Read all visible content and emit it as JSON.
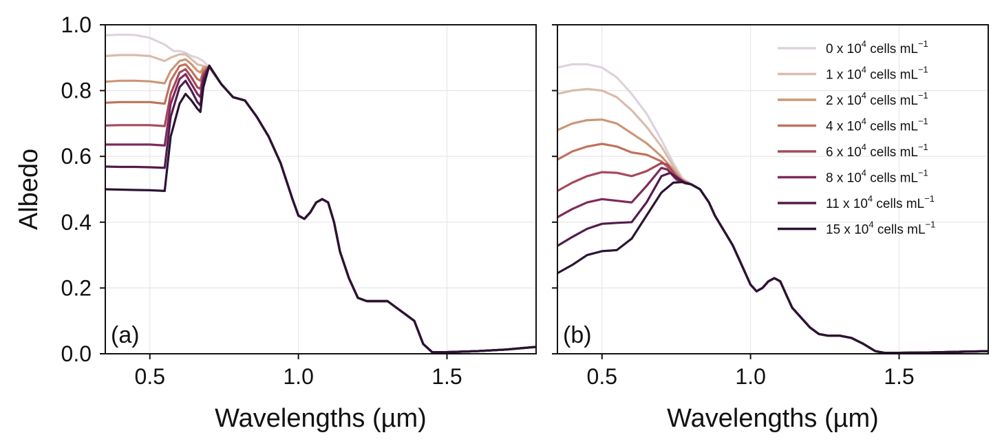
{
  "chart_data": [
    {
      "panel": "a",
      "type": "line",
      "panel_label": "(a)",
      "xlabel": "Wavelengths (µm)",
      "ylabel": "Albedo",
      "xlim": [
        0.35,
        1.8
      ],
      "ylim": [
        0.0,
        1.0
      ],
      "xticks": [
        0.5,
        1.0,
        1.5
      ],
      "xtick_labels": [
        "0.5",
        "1.0",
        "1.5"
      ],
      "yticks": [
        0.0,
        0.2,
        0.4,
        0.6,
        0.8,
        1.0
      ],
      "ytick_labels": [
        "0.0",
        "0.2",
        "0.4",
        "0.6",
        "0.8",
        "1.0"
      ],
      "grid": true,
      "shared_tail": {
        "x": [
          0.7,
          0.74,
          0.78,
          0.82,
          0.86,
          0.9,
          0.94,
          0.98,
          1.0,
          1.02,
          1.04,
          1.06,
          1.08,
          1.1,
          1.12,
          1.14,
          1.17,
          1.2,
          1.23,
          1.26,
          1.3,
          1.33,
          1.36,
          1.39,
          1.42,
          1.45,
          1.5,
          1.6,
          1.7,
          1.8
        ],
        "y": [
          0.87,
          0.82,
          0.78,
          0.77,
          0.72,
          0.66,
          0.58,
          0.47,
          0.42,
          0.41,
          0.43,
          0.46,
          0.47,
          0.46,
          0.4,
          0.31,
          0.23,
          0.17,
          0.16,
          0.16,
          0.16,
          0.14,
          0.12,
          0.1,
          0.03,
          0.005,
          0.005,
          0.008,
          0.013,
          0.021
        ]
      },
      "series": [
        {
          "name": "0 x 10^4 cells mL^-1",
          "color": "#ddd3dd",
          "x": [
            0.35,
            0.4,
            0.45,
            0.5,
            0.55,
            0.58,
            0.6,
            0.62,
            0.64,
            0.66,
            0.68,
            0.7
          ],
          "y": [
            0.968,
            0.97,
            0.969,
            0.96,
            0.94,
            0.92,
            0.92,
            0.915,
            0.905,
            0.9,
            0.89,
            0.87
          ]
        },
        {
          "name": "1 x 10^4 cells mL^-1",
          "color": "#d8bcab",
          "x": [
            0.35,
            0.4,
            0.45,
            0.5,
            0.55,
            0.57,
            0.6,
            0.62,
            0.64,
            0.66,
            0.68,
            0.7
          ],
          "y": [
            0.905,
            0.908,
            0.908,
            0.905,
            0.89,
            0.9,
            0.91,
            0.91,
            0.895,
            0.88,
            0.875,
            0.87
          ]
        },
        {
          "name": "2 x 10^4 cells mL^-1",
          "color": "#cc9676",
          "x": [
            0.35,
            0.4,
            0.45,
            0.5,
            0.55,
            0.57,
            0.6,
            0.62,
            0.64,
            0.66,
            0.67,
            0.68,
            0.7
          ],
          "y": [
            0.827,
            0.83,
            0.83,
            0.828,
            0.822,
            0.86,
            0.89,
            0.895,
            0.88,
            0.86,
            0.855,
            0.87,
            0.872
          ]
        },
        {
          "name": "4 x 10^4 cells mL^-1",
          "color": "#c0725c",
          "x": [
            0.35,
            0.4,
            0.45,
            0.5,
            0.55,
            0.57,
            0.6,
            0.62,
            0.64,
            0.66,
            0.67,
            0.68,
            0.7
          ],
          "y": [
            0.763,
            0.765,
            0.765,
            0.765,
            0.76,
            0.83,
            0.875,
            0.88,
            0.86,
            0.835,
            0.83,
            0.86,
            0.873
          ]
        },
        {
          "name": "6 x 10^4 cells mL^-1",
          "color": "#a8485a",
          "x": [
            0.35,
            0.4,
            0.45,
            0.5,
            0.55,
            0.57,
            0.6,
            0.62,
            0.64,
            0.66,
            0.67,
            0.68,
            0.7
          ],
          "y": [
            0.694,
            0.695,
            0.695,
            0.695,
            0.692,
            0.79,
            0.855,
            0.865,
            0.84,
            0.81,
            0.805,
            0.85,
            0.873
          ]
        },
        {
          "name": "8 x 10^4 cells mL^-1",
          "color": "#7e2a5c",
          "x": [
            0.35,
            0.4,
            0.45,
            0.5,
            0.55,
            0.57,
            0.6,
            0.62,
            0.64,
            0.66,
            0.67,
            0.68,
            0.7
          ],
          "y": [
            0.636,
            0.636,
            0.636,
            0.636,
            0.633,
            0.76,
            0.835,
            0.85,
            0.82,
            0.79,
            0.78,
            0.84,
            0.874
          ]
        },
        {
          "name": "11 x 10^4 cells mL^-1",
          "color": "#531b4e",
          "x": [
            0.35,
            0.4,
            0.45,
            0.5,
            0.55,
            0.57,
            0.6,
            0.62,
            0.64,
            0.66,
            0.67,
            0.68,
            0.7
          ],
          "y": [
            0.569,
            0.568,
            0.568,
            0.567,
            0.565,
            0.72,
            0.81,
            0.83,
            0.8,
            0.765,
            0.755,
            0.83,
            0.875
          ]
        },
        {
          "name": "15 x 10^4 cells mL^-1",
          "color": "#2a1434",
          "x": [
            0.35,
            0.4,
            0.45,
            0.5,
            0.55,
            0.57,
            0.6,
            0.62,
            0.64,
            0.66,
            0.67,
            0.68,
            0.7
          ],
          "y": [
            0.5,
            0.499,
            0.498,
            0.497,
            0.495,
            0.66,
            0.76,
            0.79,
            0.77,
            0.745,
            0.735,
            0.81,
            0.876
          ]
        }
      ]
    },
    {
      "panel": "b",
      "type": "line",
      "panel_label": "(b)",
      "xlabel": "Wavelengths (µm)",
      "ylabel": "",
      "xlim": [
        0.35,
        1.8
      ],
      "ylim": [
        0.0,
        1.0
      ],
      "xticks": [
        0.5,
        1.0,
        1.5
      ],
      "xtick_labels": [
        "0.5",
        "1.0",
        "1.5"
      ],
      "yticks": [
        0.0,
        0.2,
        0.4,
        0.6,
        0.8,
        1.0
      ],
      "grid": true,
      "legend": "top-right",
      "shared_tail": {
        "x": [
          0.8,
          0.83,
          0.86,
          0.88,
          0.9,
          0.92,
          0.94,
          0.96,
          0.98,
          1.0,
          1.02,
          1.04,
          1.06,
          1.08,
          1.1,
          1.12,
          1.14,
          1.17,
          1.2,
          1.23,
          1.26,
          1.3,
          1.34,
          1.38,
          1.42,
          1.45,
          1.5,
          1.6,
          1.7,
          1.8
        ],
        "y": [
          0.515,
          0.5,
          0.46,
          0.42,
          0.39,
          0.36,
          0.33,
          0.29,
          0.25,
          0.21,
          0.19,
          0.2,
          0.22,
          0.23,
          0.22,
          0.18,
          0.14,
          0.11,
          0.08,
          0.06,
          0.055,
          0.055,
          0.048,
          0.03,
          0.008,
          0.003,
          0.003,
          0.004,
          0.006,
          0.008
        ]
      },
      "series": [
        {
          "name": "0 x 10^4 cells mL^-1",
          "color": "#ddd3dd",
          "x": [
            0.35,
            0.4,
            0.45,
            0.5,
            0.55,
            0.6,
            0.65,
            0.7,
            0.74,
            0.77,
            0.8
          ],
          "y": [
            0.87,
            0.88,
            0.88,
            0.87,
            0.84,
            0.79,
            0.73,
            0.65,
            0.58,
            0.535,
            0.515
          ]
        },
        {
          "name": "1 x 10^4 cells mL^-1",
          "color": "#d8bcab",
          "x": [
            0.35,
            0.4,
            0.45,
            0.5,
            0.55,
            0.6,
            0.65,
            0.7,
            0.74,
            0.77,
            0.8
          ],
          "y": [
            0.79,
            0.8,
            0.805,
            0.8,
            0.78,
            0.74,
            0.69,
            0.63,
            0.57,
            0.53,
            0.515
          ]
        },
        {
          "name": "2 x 10^4 cells mL^-1",
          "color": "#cc9676",
          "x": [
            0.35,
            0.4,
            0.45,
            0.5,
            0.55,
            0.6,
            0.65,
            0.7,
            0.74,
            0.77,
            0.8
          ],
          "y": [
            0.68,
            0.7,
            0.71,
            0.712,
            0.7,
            0.67,
            0.64,
            0.6,
            0.56,
            0.528,
            0.515
          ]
        },
        {
          "name": "4 x 10^4 cells mL^-1",
          "color": "#c0725c",
          "x": [
            0.35,
            0.4,
            0.45,
            0.5,
            0.55,
            0.6,
            0.65,
            0.7,
            0.74,
            0.77,
            0.8
          ],
          "y": [
            0.59,
            0.615,
            0.63,
            0.638,
            0.63,
            0.612,
            0.605,
            0.585,
            0.55,
            0.525,
            0.515
          ]
        },
        {
          "name": "6 x 10^4 cells mL^-1",
          "color": "#a8485a",
          "x": [
            0.35,
            0.4,
            0.45,
            0.5,
            0.55,
            0.6,
            0.65,
            0.7,
            0.72,
            0.75,
            0.78,
            0.8
          ],
          "y": [
            0.495,
            0.52,
            0.54,
            0.552,
            0.55,
            0.54,
            0.555,
            0.58,
            0.575,
            0.54,
            0.52,
            0.515
          ]
        },
        {
          "name": "8 x 10^4 cells mL^-1",
          "color": "#7e2a5c",
          "x": [
            0.35,
            0.4,
            0.45,
            0.5,
            0.55,
            0.6,
            0.65,
            0.7,
            0.72,
            0.75,
            0.78,
            0.8
          ],
          "y": [
            0.415,
            0.44,
            0.46,
            0.47,
            0.465,
            0.46,
            0.51,
            0.565,
            0.56,
            0.53,
            0.518,
            0.515
          ]
        },
        {
          "name": "11 x 10^4 cells mL^-1",
          "color": "#531b4e",
          "x": [
            0.35,
            0.4,
            0.45,
            0.5,
            0.55,
            0.6,
            0.65,
            0.7,
            0.73,
            0.76,
            0.78,
            0.8
          ],
          "y": [
            0.328,
            0.355,
            0.38,
            0.395,
            0.398,
            0.4,
            0.46,
            0.54,
            0.55,
            0.53,
            0.52,
            0.515
          ]
        },
        {
          "name": "15 x 10^4 cells mL^-1",
          "color": "#2a1434",
          "x": [
            0.35,
            0.4,
            0.45,
            0.5,
            0.55,
            0.6,
            0.65,
            0.7,
            0.74,
            0.77,
            0.8
          ],
          "y": [
            0.245,
            0.27,
            0.3,
            0.312,
            0.315,
            0.35,
            0.42,
            0.49,
            0.52,
            0.522,
            0.515
          ]
        }
      ]
    }
  ]
}
